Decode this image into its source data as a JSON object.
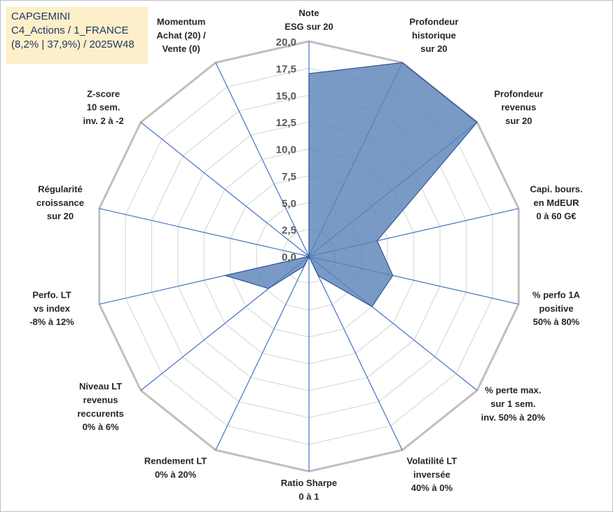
{
  "info_box": {
    "line1": "CAPGEMINI",
    "line2": "C4_Actions / 1_FRANCE",
    "line3": "(8,2% | 37,9%) / 2025W48"
  },
  "colors": {
    "grid": "#bfbfbf",
    "spoke": "#4472c4",
    "series_fill": "#5b84b8",
    "series_stroke": "#2f5597",
    "info_bg": "#fdefc9",
    "info_text": "#203864"
  },
  "chart_data": {
    "type": "radar",
    "title": "",
    "rlim": [
      0,
      20
    ],
    "grid": true,
    "tick_labels": [
      "0,0",
      "2,5",
      "5,0",
      "7,5",
      "10,0",
      "12,5",
      "15,0",
      "17,5",
      "20,0"
    ],
    "axes": [
      [
        "Note",
        "ESG sur 20"
      ],
      [
        "Profondeur",
        "historique",
        "sur 20"
      ],
      [
        "Profondeur",
        "revenus",
        "sur 20"
      ],
      [
        "Capi. bours.",
        "en MdEUR",
        "0 à 60 G€"
      ],
      [
        "% perfo 1A",
        "positive",
        "50% à 80%"
      ],
      [
        "% perte max.",
        "sur 1 sem.",
        "inv. 50% à 20%"
      ],
      [
        "Volatilité LT",
        "inversée",
        "40% à 0%"
      ],
      [
        "Ratio Sharpe",
        "0 à 1"
      ],
      [
        "Rendement LT",
        "0% à 20%"
      ],
      [
        "Niveau LT",
        "revenus",
        "reccurents",
        "0% à 6%"
      ],
      [
        "Perfo. LT",
        "vs index",
        "-8% à 12%"
      ],
      [
        "Régularité",
        "croissance",
        "sur 20"
      ],
      [
        "Z-score",
        "10 sem.",
        "inv. 2 à -2"
      ],
      [
        "Momentum",
        "Achat (20) /",
        "Vente (0)"
      ]
    ],
    "series": [
      {
        "values": [
          17.0,
          20.0,
          20.0,
          6.5,
          8.0,
          7.5,
          2.0,
          0.0,
          1.0,
          4.8,
          8.0,
          0.0,
          0.0,
          0.0
        ]
      }
    ]
  }
}
